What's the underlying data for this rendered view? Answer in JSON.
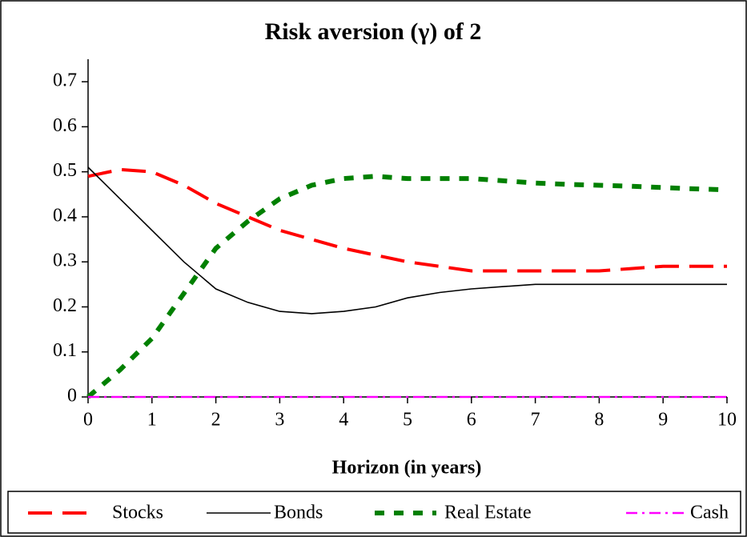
{
  "chart_data": {
    "type": "line",
    "title": "Risk aversion (γ) of 2",
    "x_label": "Horizon (in years)",
    "x": [
      0,
      0.5,
      1,
      1.5,
      2,
      2.5,
      3,
      3.5,
      4,
      4.5,
      5,
      5.5,
      6,
      6.5,
      7,
      7.5,
      8,
      8.5,
      9,
      9.5,
      10
    ],
    "series": [
      {
        "name": "Stocks",
        "color": "#ff0000",
        "values": [
          0.49,
          0.505,
          0.5,
          0.47,
          0.43,
          0.4,
          0.37,
          0.35,
          0.33,
          0.315,
          0.3,
          0.29,
          0.28,
          0.28,
          0.28,
          0.28,
          0.28,
          0.285,
          0.29,
          0.29,
          0.29
        ]
      },
      {
        "name": "Bonds",
        "color": "#000000",
        "values": [
          0.51,
          0.44,
          0.37,
          0.3,
          0.24,
          0.21,
          0.19,
          0.185,
          0.19,
          0.2,
          0.22,
          0.232,
          0.24,
          0.245,
          0.25,
          0.25,
          0.25,
          0.25,
          0.25,
          0.25,
          0.25
        ]
      },
      {
        "name": "Real Estate",
        "color": "#008000",
        "values": [
          0,
          0.06,
          0.13,
          0.23,
          0.33,
          0.39,
          0.44,
          0.47,
          0.485,
          0.49,
          0.485,
          0.485,
          0.485,
          0.48,
          0.475,
          0.472,
          0.47,
          0.468,
          0.465,
          0.462,
          0.46
        ]
      },
      {
        "name": "Cash",
        "color": "#ff00ff",
        "values": [
          0,
          0,
          0,
          0,
          0,
          0,
          0,
          0,
          0,
          0,
          0,
          0,
          0,
          0,
          0,
          0,
          0,
          0,
          0,
          0,
          0
        ]
      }
    ],
    "xlim": [
      0,
      10
    ],
    "xticks": [
      0,
      1,
      2,
      3,
      4,
      5,
      6,
      7,
      8,
      9,
      10
    ],
    "ylim": [
      0,
      0.75
    ],
    "yticks": [
      0,
      0.1,
      0.2,
      0.3,
      0.4,
      0.5,
      0.6,
      0.7
    ],
    "grid": false,
    "legend": "bottom"
  }
}
